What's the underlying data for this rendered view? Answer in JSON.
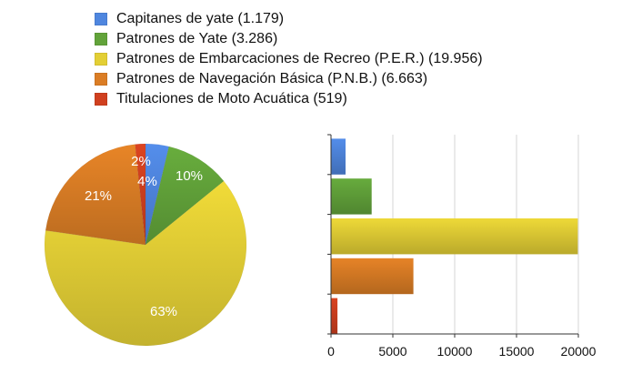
{
  "chart_data": [
    {
      "type": "pie",
      "categories": [
        "Capitanes de yate",
        "Patrones de Yate",
        "Patrones de Embarcaciones de Recreo (P.E.R.)",
        "Patrones de Navegación Básica (P.N.B.)",
        "Titulaciones de Moto Acuática"
      ],
      "values": [
        1179,
        3286,
        19956,
        6663,
        519
      ],
      "percent_labels": [
        "4%",
        "10%",
        "63%",
        "21%",
        "2%"
      ],
      "colors": [
        "#4f86df",
        "#62a33a",
        "#e3cf35",
        "#db7d25",
        "#d0401f"
      ]
    },
    {
      "type": "bar",
      "orientation": "horizontal",
      "categories": [
        "Capitanes de yate",
        "Patrones de Yate",
        "Patrones de Embarcaciones de Recreo (P.E.R.)",
        "Patrones de Navegación Básica (P.N.B.)",
        "Titulaciones de Moto Acuática"
      ],
      "values": [
        1179,
        3286,
        19956,
        6663,
        519
      ],
      "xlim": [
        0,
        20000
      ],
      "xticks": [
        "0",
        "5000",
        "10000",
        "15000",
        "20000"
      ],
      "colors": [
        "#4f86df",
        "#62a33a",
        "#e3cf35",
        "#db7d25",
        "#d0401f"
      ],
      "grid": true
    }
  ],
  "legend": [
    {
      "label": "Capitanes de yate (1.179)",
      "color": "#4f86df"
    },
    {
      "label": "Patrones de Yate (3.286)",
      "color": "#62a33a"
    },
    {
      "label": "Patrones de Embarcaciones de Recreo (P.E.R.) (19.956)",
      "color": "#e3cf35"
    },
    {
      "label": "Patrones de Navegación Básica (P.N.B.) (6.663)",
      "color": "#db7d25"
    },
    {
      "label": "Titulaciones de Moto Acuática (519)",
      "color": "#d0401f"
    }
  ]
}
